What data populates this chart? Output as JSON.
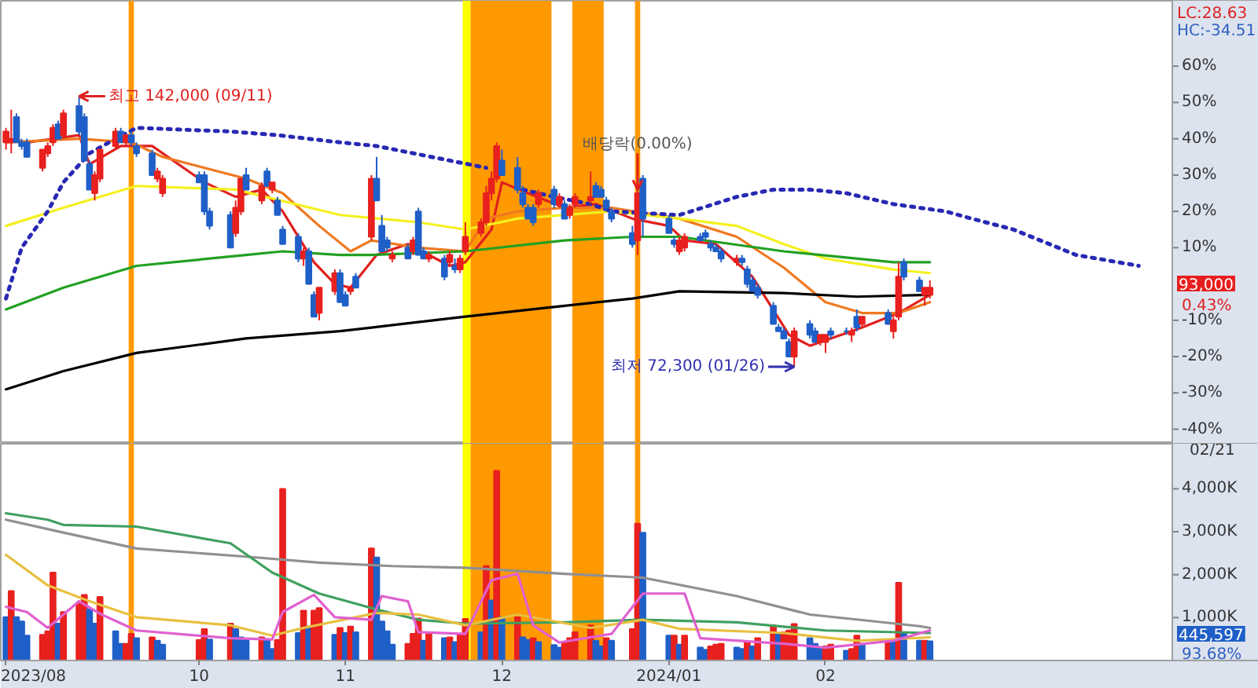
{
  "chart_data": [
    {
      "type": "candlestick",
      "x": [
        "2023-08-28",
        "2023-08-29",
        "2023-08-30",
        "2023-08-31",
        "2023-09-01",
        "2023-09-04",
        "2023-09-05",
        "2023-09-06",
        "2023-09-07",
        "2023-09-08",
        "2023-09-11",
        "2023-09-12",
        "2023-09-13",
        "2023-09-14",
        "2023-09-15",
        "2023-09-18",
        "2023-09-19",
        "2023-09-20",
        "2023-09-21",
        "2023-09-22",
        "2023-09-25",
        "2023-09-26",
        "2023-09-27",
        "2023-10-04",
        "2023-10-05",
        "2023-10-06",
        "2023-10-10",
        "2023-10-11",
        "2023-10-12",
        "2023-10-13",
        "2023-10-16",
        "2023-10-17",
        "2023-10-18",
        "2023-10-19",
        "2023-10-20",
        "2023-10-23",
        "2023-10-24",
        "2023-10-25",
        "2023-10-26",
        "2023-10-27",
        "2023-10-30",
        "2023-10-31",
        "2023-11-01",
        "2023-11-02",
        "2023-11-03",
        "2023-11-06",
        "2023-11-07",
        "2023-11-08",
        "2023-11-09",
        "2023-11-10",
        "2023-11-13",
        "2023-11-14",
        "2023-11-15",
        "2023-11-16",
        "2023-11-17",
        "2023-11-20",
        "2023-11-21",
        "2023-11-22",
        "2023-11-23",
        "2023-11-24",
        "2023-11-27",
        "2023-11-28",
        "2023-11-29",
        "2023-11-30",
        "2023-12-01",
        "2023-12-04",
        "2023-12-05",
        "2023-12-06",
        "2023-12-07",
        "2023-12-08",
        "2023-12-11",
        "2023-12-12",
        "2023-12-13",
        "2023-12-14",
        "2023-12-15",
        "2023-12-18",
        "2023-12-19",
        "2023-12-20",
        "2023-12-21",
        "2023-12-22",
        "2023-12-26",
        "2023-12-27",
        "2023-12-28",
        "2024-01-02",
        "2024-01-03",
        "2024-01-04",
        "2024-01-05",
        "2024-01-08",
        "2024-01-09",
        "2024-01-10",
        "2024-01-11",
        "2024-01-12",
        "2024-01-15",
        "2024-01-16",
        "2024-01-17",
        "2024-01-18",
        "2024-01-19",
        "2024-01-22",
        "2024-01-23",
        "2024-01-24",
        "2024-01-25",
        "2024-01-26",
        "2024-01-29",
        "2024-01-30",
        "2024-01-31",
        "2024-02-01",
        "2024-02-02",
        "2024-02-05",
        "2024-02-06",
        "2024-02-07",
        "2024-02-08",
        "2024-02-13",
        "2024-02-14",
        "2024-02-15",
        "2024-02-16",
        "2024-02-19",
        "2024-02-20",
        "2024-02-21"
      ],
      "ohlc": [
        [
          39,
          43,
          37,
          42
        ],
        [
          39,
          48,
          36,
          40
        ],
        [
          46,
          47,
          39,
          39
        ],
        [
          39,
          40,
          37,
          38
        ],
        [
          39,
          40,
          35,
          35
        ],
        [
          32,
          37,
          31,
          37
        ],
        [
          36,
          39,
          35,
          38
        ],
        [
          39,
          44,
          38,
          43
        ],
        [
          44,
          45,
          40,
          40
        ],
        [
          41,
          48,
          40,
          47
        ],
        [
          49,
          51.7,
          41,
          42
        ],
        [
          46,
          47,
          34,
          34
        ],
        [
          33,
          34,
          26,
          26
        ],
        [
          25,
          31,
          23,
          30
        ],
        [
          29,
          37,
          28,
          37
        ],
        [
          38,
          43,
          37,
          42
        ],
        [
          42,
          43,
          39,
          39
        ],
        [
          39,
          41,
          38,
          41
        ],
        [
          41,
          42,
          38,
          39
        ],
        [
          38,
          39,
          35,
          36
        ],
        [
          36,
          37,
          30,
          30
        ],
        [
          29,
          32,
          28,
          31
        ],
        [
          25,
          30,
          24,
          29
        ],
        [
          30,
          31,
          28,
          28
        ],
        [
          30,
          31,
          19,
          20
        ],
        [
          20,
          21,
          15,
          16
        ],
        [
          19,
          20,
          10,
          10
        ],
        [
          14,
          23,
          13,
          21
        ],
        [
          20,
          29,
          19,
          29
        ],
        [
          30,
          32,
          26,
          26
        ],
        [
          23,
          28,
          22,
          27
        ],
        [
          31,
          32,
          27,
          27
        ],
        [
          26,
          28,
          25,
          28
        ],
        [
          23,
          24,
          19,
          19
        ],
        [
          15,
          16,
          11,
          11
        ],
        [
          13,
          14,
          6,
          7
        ],
        [
          7,
          10,
          5,
          9
        ],
        [
          9,
          10,
          0,
          0
        ],
        [
          -3,
          -2,
          -9,
          -9
        ],
        [
          -8,
          -1,
          -10,
          -1
        ],
        [
          -2,
          4,
          -3,
          3
        ],
        [
          3,
          4,
          -5,
          -5
        ],
        [
          -3,
          -2,
          -6,
          -6
        ],
        [
          -2,
          -1,
          -3,
          -1
        ],
        [
          2,
          3,
          -1,
          -1
        ],
        [
          13,
          30,
          12,
          29
        ],
        [
          29,
          35,
          23,
          23
        ],
        [
          16,
          19,
          9,
          9
        ],
        [
          12,
          13,
          9,
          10
        ],
        [
          7,
          9,
          6,
          8
        ],
        [
          10,
          11,
          7,
          7
        ],
        [
          9,
          13,
          8,
          12
        ],
        [
          20,
          21,
          8,
          8
        ],
        [
          9,
          10,
          7,
          7
        ],
        [
          7,
          9,
          6,
          8
        ],
        [
          7,
          8,
          1,
          2
        ],
        [
          6,
          9,
          5,
          8
        ],
        [
          5,
          7,
          3,
          4
        ],
        [
          4,
          8,
          3,
          7
        ],
        [
          9,
          17,
          8,
          13
        ],
        [
          14,
          18,
          13,
          17
        ],
        [
          17,
          27,
          16,
          25
        ],
        [
          25,
          31,
          23,
          29
        ],
        [
          29,
          39,
          28,
          38
        ],
        [
          34,
          37,
          30,
          30
        ],
        [
          32,
          35,
          25,
          26
        ],
        [
          25,
          27,
          21,
          22
        ],
        [
          21,
          22,
          18,
          18
        ],
        [
          21,
          22,
          16,
          17
        ],
        [
          22,
          26,
          21,
          25
        ],
        [
          26,
          27,
          21,
          22
        ],
        [
          22,
          25,
          21,
          24
        ],
        [
          22,
          23,
          18,
          18
        ],
        [
          19,
          22,
          18,
          21
        ],
        [
          22,
          25,
          21,
          24
        ],
        [
          23,
          31,
          22,
          24
        ],
        [
          27,
          28,
          24,
          24
        ],
        [
          26,
          27,
          24,
          24
        ],
        [
          23,
          24,
          20,
          21
        ],
        [
          20,
          21,
          17,
          18
        ],
        [
          14,
          16,
          10,
          11
        ],
        [
          12,
          26,
          8,
          25
        ],
        [
          29,
          30,
          13,
          18
        ],
        [
          18,
          19,
          14,
          14
        ],
        [
          12,
          13,
          10,
          11
        ],
        [
          9,
          13,
          8,
          12
        ],
        [
          10,
          14,
          9,
          13
        ],
        [
          13,
          14,
          12,
          12
        ],
        [
          14,
          15,
          12,
          13
        ],
        [
          11,
          12,
          9,
          10
        ],
        [
          10,
          11,
          9,
          9
        ],
        [
          9,
          10,
          6,
          7
        ],
        [
          6,
          8,
          5,
          7
        ],
        [
          7,
          8,
          5,
          6
        ],
        [
          4,
          5,
          -1,
          0
        ],
        [
          1,
          2,
          -2,
          -2
        ],
        [
          -1,
          0,
          -4,
          -3
        ],
        [
          -6,
          -5,
          -11,
          -11
        ],
        [
          -12,
          -11,
          -13,
          -13
        ],
        [
          -13,
          -12,
          -15,
          -15
        ],
        [
          -16,
          -15,
          -20,
          -20
        ],
        [
          -20,
          -12,
          -22.8,
          -13
        ],
        [
          -11,
          -10,
          -15,
          -14
        ],
        [
          -13,
          -12,
          -16,
          -16
        ],
        [
          -16,
          -14,
          -17,
          -14
        ],
        [
          -16,
          -14,
          -19,
          -14
        ],
        [
          -13,
          -12,
          -15,
          -14
        ],
        [
          -13,
          -12,
          -14,
          -13
        ],
        [
          -14,
          -12,
          -16,
          -13
        ],
        [
          -9,
          -7,
          -13,
          -12
        ],
        [
          -11,
          -9,
          -12,
          -9
        ],
        [
          -8,
          -7,
          -11,
          -11
        ],
        [
          -13,
          -9,
          -15,
          -10
        ],
        [
          -9,
          6,
          -10,
          2
        ],
        [
          6,
          7,
          1,
          2
        ],
        [
          1,
          2,
          -2,
          -2
        ],
        [
          -3,
          -1,
          -6,
          -1
        ],
        [
          -3,
          1,
          -4,
          -1
        ]
      ],
      "colors": [
        "#e8201e",
        "#e8201e",
        "#1f5fc8",
        "#1f5fc8",
        "#1f5fc8",
        "#e8201e",
        "#e8201e",
        "#e8201e",
        "#1f5fc8",
        "#e8201e",
        "#1f5fc8",
        "#1f5fc8",
        "#1f5fc8",
        "#e8201e",
        "#e8201e",
        "#e8201e",
        "#1f5fc8",
        "#e8201e",
        "#1f5fc8",
        "#1f5fc8",
        "#1f5fc8",
        "#e8201e",
        "#e8201e",
        "#1f5fc8",
        "#1f5fc8",
        "#1f5fc8",
        "#1f5fc8",
        "#e8201e",
        "#e8201e",
        "#1f5fc8",
        "#e8201e",
        "#1f5fc8",
        "#e8201e",
        "#1f5fc8",
        "#1f5fc8",
        "#1f5fc8",
        "#e8201e",
        "#1f5fc8",
        "#1f5fc8",
        "#e8201e",
        "#e8201e",
        "#1f5fc8",
        "#1f5fc8",
        "#e8201e",
        "#1f5fc8",
        "#e8201e",
        "#1f5fc8",
        "#1f5fc8",
        "#1f5fc8",
        "#e8201e",
        "#1f5fc8",
        "#e8201e",
        "#1f5fc8",
        "#1f5fc8",
        "#e8201e",
        "#1f5fc8",
        "#e8201e",
        "#1f5fc8",
        "#e8201e",
        "#e8201e",
        "#e8201e",
        "#e8201e",
        "#e8201e",
        "#e8201e",
        "#1f5fc8",
        "#1f5fc8",
        "#1f5fc8",
        "#1f5fc8",
        "#1f5fc8",
        "#e8201e",
        "#1f5fc8",
        "#e8201e",
        "#1f5fc8",
        "#e8201e",
        "#e8201e",
        "#e8201e",
        "#1f5fc8",
        "#1f5fc8",
        "#1f5fc8",
        "#1f5fc8",
        "#1f5fc8",
        "#e8201e",
        "#1f5fc8",
        "#1f5fc8",
        "#1f5fc8",
        "#e8201e",
        "#e8201e",
        "#1f5fc8",
        "#1f5fc8",
        "#1f5fc8",
        "#1f5fc8",
        "#1f5fc8",
        "#e8201e",
        "#1f5fc8",
        "#1f5fc8",
        "#1f5fc8",
        "#1f5fc8",
        "#1f5fc8",
        "#1f5fc8",
        "#1f5fc8",
        "#1f5fc8",
        "#e8201e",
        "#1f5fc8",
        "#1f5fc8",
        "#e8201e",
        "#e8201e",
        "#1f5fc8",
        "#1f5fc8",
        "#e8201e",
        "#1f5fc8",
        "#e8201e",
        "#1f5fc8",
        "#e8201e",
        "#e8201e",
        "#1f5fc8",
        "#1f5fc8",
        "#e8201e",
        "#e8201e"
      ],
      "series": [
        {
          "type": "line",
          "color": "#e0201e",
          "x": [
            "2023-08-28",
            "2023-09-01",
            "2023-09-11",
            "2023-09-13",
            "2023-09-19",
            "2023-09-25",
            "2023-10-05",
            "2023-10-11",
            "2023-10-16",
            "2023-10-20",
            "2023-10-26",
            "2023-10-30",
            "2023-11-02",
            "2023-11-07",
            "2023-11-13",
            "2023-11-21",
            "2023-11-24",
            "2023-11-29",
            "2023-12-01",
            "2023-12-06",
            "2023-12-13",
            "2023-12-19",
            "2023-12-26",
            "2024-01-02",
            "2024-01-05",
            "2024-01-11",
            "2024-01-18",
            "2024-01-25",
            "2024-01-29",
            "2024-02-02",
            "2024-02-08",
            "2024-02-15",
            "2024-02-21"
          ],
          "values": [
            40,
            39,
            41,
            33,
            38,
            38,
            28,
            24,
            26,
            20,
            6,
            0,
            -1,
            8,
            11,
            5,
            6,
            15,
            28,
            25,
            21,
            22,
            18,
            16,
            12,
            11,
            2,
            -14,
            -17,
            -15,
            -12,
            -8,
            -3
          ]
        },
        {
          "type": "line",
          "color": "#f07820",
          "x": [
            "2023-08-28",
            "2023-09-11",
            "2023-09-21",
            "2023-09-27",
            "2023-10-13",
            "2023-10-20",
            "2023-10-27",
            "2023-11-02",
            "2023-11-06",
            "2023-11-15",
            "2023-11-24",
            "2023-11-28",
            "2023-12-04",
            "2023-12-13",
            "2023-12-22",
            "2024-01-04",
            "2024-01-15",
            "2024-01-24",
            "2024-02-01",
            "2024-02-08",
            "2024-02-15",
            "2024-02-21"
          ],
          "values": [
            39,
            40,
            39,
            35,
            29,
            25,
            16,
            9,
            12,
            10,
            9,
            18,
            20,
            21,
            21,
            18,
            13,
            4.5,
            -5,
            -8,
            -8,
            -5
          ]
        },
        {
          "type": "line",
          "color": "#f5f01e",
          "x": [
            "2023-08-28",
            "2023-09-08",
            "2023-09-22",
            "2023-10-11",
            "2023-10-31",
            "2023-11-15",
            "2023-11-24",
            "2023-12-04",
            "2023-12-22",
            "2024-01-04",
            "2024-01-15",
            "2024-01-24",
            "2024-02-01",
            "2024-02-14",
            "2024-02-21"
          ],
          "values": [
            16,
            21,
            27,
            26,
            19,
            17,
            15,
            18,
            20,
            18,
            16,
            11,
            7,
            4,
            3
          ]
        },
        {
          "type": "line",
          "color": "#22a022",
          "x": [
            "2023-08-28",
            "2023-09-08",
            "2023-09-22",
            "2023-10-13",
            "2023-10-20",
            "2023-10-31",
            "2023-11-06",
            "2023-11-24",
            "2023-12-13",
            "2023-12-26",
            "2024-01-04",
            "2024-01-24",
            "2024-02-14",
            "2024-02-21"
          ],
          "values": [
            -7,
            -1,
            5,
            8,
            9,
            8,
            8,
            9,
            12,
            13,
            13,
            9,
            6,
            6
          ]
        },
        {
          "type": "line",
          "color": "#000000",
          "x": [
            "2023-08-28",
            "2023-09-08",
            "2023-09-22",
            "2023-10-13",
            "2023-10-31",
            "2023-11-06",
            "2023-11-24",
            "2023-12-13",
            "2023-12-26",
            "2024-01-04",
            "2024-01-24",
            "2024-02-07",
            "2024-02-21"
          ],
          "values": [
            -29,
            -24,
            -19,
            -15,
            -13,
            -12,
            -9,
            -6,
            -4,
            -2,
            -2.5,
            -3.5,
            -3
          ]
        },
        {
          "type": "line",
          "color": "#2828b4",
          "line_style": "dotted",
          "x": [
            "2023-08-28",
            "2023-08-31",
            "2023-09-05",
            "2023-09-08",
            "2023-09-13",
            "2023-09-18",
            "2023-09-22",
            "2023-10-10",
            "2023-10-19",
            "2023-10-31",
            "2023-11-07",
            "2023-11-14",
            "2023-11-21",
            "2023-11-28",
            "2023-11-29",
            "2023-12-05",
            "2023-12-11",
            "2023-12-18",
            "2023-12-22",
            "2024-01-04",
            "2024-01-15",
            "2024-01-22",
            "2024-01-29",
            "2024-02-05",
            "2024-02-14",
            "2024-02-24",
            "2024-02-29",
            "2024-03-08",
            "2024-03-20",
            "2024-04-01"
          ],
          "values": [
            -4,
            10,
            20,
            28,
            36,
            40,
            43,
            42,
            41,
            39,
            38,
            36,
            34,
            32,
            null,
            26,
            24,
            22,
            20,
            19,
            24,
            26,
            26,
            25,
            22,
            20,
            18,
            15,
            8,
            5
          ]
        }
      ],
      "xlim": [
        "2023-08-27",
        "2024-04-24"
      ],
      "ylim": [
        -44,
        78
      ],
      "yticks": [
        {
          "value": -40,
          "label": "-40%"
        },
        {
          "value": -30,
          "label": "-30%"
        },
        {
          "value": -20,
          "label": "-20%"
        },
        {
          "value": -10,
          "label": "-10%"
        },
        {
          "value": 10,
          "label": "10%"
        },
        {
          "value": 20,
          "label": "20%"
        },
        {
          "value": 30,
          "label": "30%"
        },
        {
          "value": 40,
          "label": "40%"
        },
        {
          "value": 50,
          "label": "50%"
        },
        {
          "value": 60,
          "label": "60%"
        }
      ],
      "tick_labels": "y",
      "bands": [
        {
          "axis": "x",
          "from": "2023-09-20T12:00",
          "to": "2023-09-21T12:00",
          "color": "#ff9900"
        },
        {
          "axis": "x",
          "from": "2023-11-23T12:00",
          "to": "2023-11-25",
          "color": "#ffff00"
        },
        {
          "axis": "x",
          "from": "2023-11-25",
          "to": "2023-12-10T12:00",
          "color": "#ff9900"
        },
        {
          "axis": "x",
          "from": "2023-12-14T12:00",
          "to": "2023-12-20T12:00",
          "color": "#ff9900"
        },
        {
          "axis": "x",
          "from": "2023-12-26T12:00",
          "to": "2023-12-27T12:00",
          "color": "#ff9900"
        }
      ],
      "annotations": [
        {
          "text": "최고 142,000 (09/11)",
          "x": "2023-09-11",
          "y": 51.7
        },
        {
          "text": "배당락(0.00%)",
          "x": "2023-12-27",
          "y": 26
        },
        {
          "text": "최저 72,300 (01/26)",
          "x": "2024-01-26",
          "y": -22.8
        },
        "LC:28.63",
        "HC:-34.51",
        "93,000",
        "0.43%"
      ]
    },
    {
      "type": "bar",
      "x": [
        "2023-08-28",
        "2023-08-29",
        "2023-08-30",
        "2023-08-31",
        "2023-09-01",
        "2023-09-04",
        "2023-09-05",
        "2023-09-06",
        "2023-09-07",
        "2023-09-08",
        "2023-09-11",
        "2023-09-12",
        "2023-09-13",
        "2023-09-14",
        "2023-09-15",
        "2023-09-18",
        "2023-09-19",
        "2023-09-20",
        "2023-09-21",
        "2023-09-22",
        "2023-09-25",
        "2023-09-26",
        "2023-09-27",
        "2023-10-04",
        "2023-10-05",
        "2023-10-06",
        "2023-10-10",
        "2023-10-11",
        "2023-10-12",
        "2023-10-13",
        "2023-10-16",
        "2023-10-17",
        "2023-10-18",
        "2023-10-19",
        "2023-10-20",
        "2023-10-23",
        "2023-10-24",
        "2023-10-25",
        "2023-10-26",
        "2023-10-27",
        "2023-10-30",
        "2023-10-31",
        "2023-11-01",
        "2023-11-02",
        "2023-11-03",
        "2023-11-06",
        "2023-11-07",
        "2023-11-08",
        "2023-11-09",
        "2023-11-10",
        "2023-11-13",
        "2023-11-14",
        "2023-11-15",
        "2023-11-16",
        "2023-11-17",
        "2023-11-20",
        "2023-11-21",
        "2023-11-22",
        "2023-11-23",
        "2023-11-24",
        "2023-11-27",
        "2023-11-28",
        "2023-11-29",
        "2023-11-30",
        "2023-12-01",
        "2023-12-04",
        "2023-12-05",
        "2023-12-06",
        "2023-12-07",
        "2023-12-08",
        "2023-12-11",
        "2023-12-12",
        "2023-12-13",
        "2023-12-14",
        "2023-12-15",
        "2023-12-18",
        "2023-12-19",
        "2023-12-20",
        "2023-12-21",
        "2023-12-22",
        "2023-12-26",
        "2023-12-27",
        "2023-12-28",
        "2024-01-02",
        "2024-01-03",
        "2024-01-04",
        "2024-01-05",
        "2024-01-08",
        "2024-01-09",
        "2024-01-10",
        "2024-01-11",
        "2024-01-12",
        "2024-01-15",
        "2024-01-16",
        "2024-01-17",
        "2024-01-18",
        "2024-01-19",
        "2024-01-22",
        "2024-01-23",
        "2024-01-24",
        "2024-01-25",
        "2024-01-26",
        "2024-01-29",
        "2024-01-30",
        "2024-01-31",
        "2024-02-01",
        "2024-02-02",
        "2024-02-05",
        "2024-02-06",
        "2024-02-07",
        "2024-02-08",
        "2024-02-13",
        "2024-02-14",
        "2024-02-15",
        "2024-02-16",
        "2024-02-19",
        "2024-02-20",
        "2024-02-21"
      ],
      "values": [
        1010,
        1620,
        1010,
        910,
        580,
        600,
        680,
        2050,
        860,
        1130,
        1350,
        1530,
        1190,
        860,
        1480,
        680,
        390,
        390,
        620,
        520,
        540,
        460,
        370,
        480,
        730,
        490,
        860,
        730,
        540,
        480,
        540,
        480,
        270,
        480,
        4000,
        640,
        1160,
        790,
        1160,
        1220,
        600,
        760,
        640,
        790,
        660,
        2610,
        2400,
        910,
        680,
        370,
        390,
        620,
        980,
        460,
        620,
        520,
        540,
        430,
        620,
        970,
        660,
        2200,
        1400,
        4420,
        1010,
        1010,
        540,
        480,
        520,
        430,
        360,
        300,
        420,
        520,
        660,
        820,
        460,
        330,
        520,
        460,
        730,
        3190,
        2980,
        580,
        580,
        370,
        580,
        300,
        250,
        330,
        370,
        390,
        300,
        270,
        430,
        330,
        520,
        820,
        640,
        660,
        700,
        850,
        520,
        390,
        310,
        330,
        370,
        230,
        270,
        580,
        390,
        460,
        460,
        1810,
        620,
        460,
        460,
        446
      ],
      "colors": [
        "#1f5fc8",
        "#e8201e",
        "#1f5fc8",
        "#1f5fc8",
        "#1f5fc8",
        "#e8201e",
        "#e8201e",
        "#e8201e",
        "#1f5fc8",
        "#e8201e",
        "#e8201e",
        "#e8201e",
        "#1f5fc8",
        "#1f5fc8",
        "#e8201e",
        "#1f5fc8",
        "#1f5fc8",
        "#e8201e",
        "#e8201e",
        "#1f5fc8",
        "#e8201e",
        "#1f5fc8",
        "#1f5fc8",
        "#e8201e",
        "#e8201e",
        "#1f5fc8",
        "#e8201e",
        "#1f5fc8",
        "#1f5fc8",
        "#1f5fc8",
        "#e8201e",
        "#1f5fc8",
        "#1f5fc8",
        "#e8201e",
        "#e8201e",
        "#1f5fc8",
        "#e8201e",
        "#1f5fc8",
        "#e8201e",
        "#e8201e",
        "#1f5fc8",
        "#e8201e",
        "#1f5fc8",
        "#e8201e",
        "#1f5fc8",
        "#e8201e",
        "#1f5fc8",
        "#1f5fc8",
        "#1f5fc8",
        "#1f5fc8",
        "#e8201e",
        "#e8201e",
        "#e8201e",
        "#1f5fc8",
        "#e8201e",
        "#1f5fc8",
        "#e8201e",
        "#1f5fc8",
        "#e8201e",
        "#e8201e",
        "#1f5fc8",
        "#e8201e",
        "#1f5fc8",
        "#e8201e",
        "#1f5fc8",
        "#e8201e",
        "#1f5fc8",
        "#1f5fc8",
        "#e8201e",
        "#1f5fc8",
        "#1f5fc8",
        "#1f5fc8",
        "#e8201e",
        "#e8201e",
        "#e8201e",
        "#e8201e",
        "#1f5fc8",
        "#1f5fc8",
        "#e8201e",
        "#1f5fc8",
        "#e8201e",
        "#e8201e",
        "#1f5fc8",
        "#1f5fc8",
        "#e8201e",
        "#1f5fc8",
        "#e8201e",
        "#1f5fc8",
        "#1f5fc8",
        "#e8201e",
        "#e8201e",
        "#e8201e",
        "#1f5fc8",
        "#1f5fc8",
        "#e8201e",
        "#1f5fc8",
        "#e8201e",
        "#e8201e",
        "#1f5fc8",
        "#e8201e",
        "#e8201e",
        "#e8201e",
        "#1f5fc8",
        "#1f5fc8",
        "#1f5fc8",
        "#e8201e",
        "#e8201e",
        "#1f5fc8",
        "#e8201e",
        "#e8201e",
        "#1f5fc8",
        "#e8201e",
        "#1f5fc8",
        "#e8201e",
        "#1f5fc8",
        "#1f5fc8",
        "#e8201e",
        "#1f5fc8"
      ],
      "series": [
        {
          "type": "line",
          "color": "#909090",
          "x": [
            "2023-08-28",
            "2023-09-08",
            "2023-09-22",
            "2023-10-13",
            "2023-10-27",
            "2023-11-10",
            "2023-11-24",
            "2023-12-13",
            "2023-12-28",
            "2024-01-15",
            "2024-01-29",
            "2024-02-19",
            "2024-02-21"
          ],
          "values": [
            3280,
            2980,
            2610,
            2420,
            2280,
            2200,
            2160,
            2020,
            1930,
            1500,
            1070,
            800,
            760
          ]
        },
        {
          "type": "line",
          "color": "#40a060",
          "x": [
            "2023-08-28",
            "2023-09-05",
            "2023-09-08",
            "2023-09-22",
            "2023-10-10",
            "2023-10-18",
            "2023-10-27",
            "2023-11-07",
            "2023-11-15",
            "2023-11-24",
            "2023-12-13",
            "2023-12-28",
            "2024-01-15",
            "2024-02-01",
            "2024-02-21"
          ],
          "values": [
            3430,
            3280,
            3160,
            3120,
            2730,
            2050,
            1560,
            1190,
            950,
            860,
            890,
            950,
            890,
            700,
            640
          ]
        },
        {
          "type": "line",
          "color": "#e8c040",
          "x": [
            "2023-08-28",
            "2023-09-05",
            "2023-09-13",
            "2023-09-22",
            "2023-10-10",
            "2023-10-18",
            "2023-10-24",
            "2023-11-07",
            "2023-11-15",
            "2023-11-24",
            "2023-12-04",
            "2023-12-18",
            "2023-12-28",
            "2024-01-04",
            "2024-01-24",
            "2024-02-07",
            "2024-02-21"
          ],
          "values": [
            2460,
            1750,
            1380,
            1010,
            820,
            580,
            760,
            1110,
            1070,
            820,
            1070,
            760,
            950,
            740,
            640,
            460,
            540
          ]
        },
        {
          "type": "line",
          "color": "#e060d0",
          "x": [
            "2023-08-28",
            "2023-09-01",
            "2023-09-05",
            "2023-09-11",
            "2023-09-15",
            "2023-09-22",
            "2023-10-10",
            "2023-10-18",
            "2023-10-20",
            "2023-10-26",
            "2023-10-30",
            "2023-11-06",
            "2023-11-08",
            "2023-11-13",
            "2023-11-15",
            "2023-11-24",
            "2023-11-29",
            "2023-12-04",
            "2023-12-07",
            "2023-12-12",
            "2023-12-22",
            "2023-12-28",
            "2024-01-05",
            "2024-01-08",
            "2024-01-24",
            "2024-02-01",
            "2024-02-14",
            "2024-02-21"
          ],
          "values": [
            1250,
            1130,
            760,
            1380,
            1090,
            700,
            520,
            490,
            1130,
            1530,
            1010,
            950,
            1500,
            1380,
            660,
            620,
            1870,
            2020,
            820,
            420,
            620,
            1560,
            1560,
            520,
            390,
            300,
            460,
            700
          ]
        }
      ],
      "xlim": [
        "2023-08-27",
        "2024-04-24"
      ],
      "xticks": [
        {
          "value": "2023-08-28",
          "label": "2023/08"
        },
        {
          "value": "2023-10-04",
          "label": "10"
        },
        {
          "value": "2023-11-01",
          "label": "11"
        },
        {
          "value": "2023-12-01",
          "label": "12"
        },
        {
          "value": "2024-01-02",
          "label": "2024/01"
        },
        {
          "value": "2024-02-01",
          "label": "02"
        }
      ],
      "ylim": [
        0,
        5050
      ],
      "yticks": [
        {
          "value": 1000,
          "label": "1,000K"
        },
        {
          "value": 2000,
          "label": "2,000K"
        },
        {
          "value": 3000,
          "label": "3,000K"
        },
        {
          "value": 4000,
          "label": "4,000K"
        }
      ],
      "bands": [
        {
          "axis": "x",
          "from": "2023-09-20T12:00",
          "to": "2023-09-21T12:00",
          "color": "#ff9900"
        },
        {
          "axis": "x",
          "from": "2023-11-23T12:00",
          "to": "2023-11-25",
          "color": "#ffff00"
        },
        {
          "axis": "x",
          "from": "2023-11-25",
          "to": "2023-12-10T12:00",
          "color": "#ff9900"
        },
        {
          "axis": "x",
          "from": "2023-12-14T12:00",
          "to": "2023-12-20T12:00",
          "color": "#ff9900"
        },
        {
          "axis": "x",
          "from": "2023-12-26T12:00",
          "to": "2023-12-27T12:00",
          "color": "#ff9900"
        }
      ],
      "annotations": [
        "445,597",
        "93.68%",
        "02/21"
      ]
    }
  ]
}
